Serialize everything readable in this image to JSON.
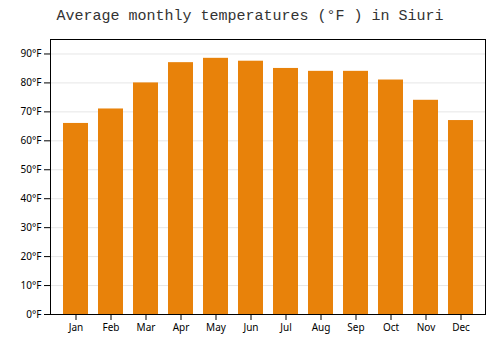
{
  "chart_data": {
    "type": "bar",
    "title": "Average monthly temperatures (°F ) in Siuri",
    "categories": [
      "Jan",
      "Feb",
      "Mar",
      "Apr",
      "May",
      "Jun",
      "Jul",
      "Aug",
      "Sep",
      "Oct",
      "Nov",
      "Dec"
    ],
    "values": [
      66,
      71,
      80,
      87,
      88.5,
      87.5,
      85,
      84,
      84,
      81,
      74,
      67
    ],
    "color": "#E8820A",
    "ylim": [
      0,
      95
    ],
    "yticks": [
      {
        "value": 0,
        "label": "0°F"
      },
      {
        "value": 10,
        "label": "10°F"
      },
      {
        "value": 20,
        "label": "20°F"
      },
      {
        "value": 30,
        "label": "30°F"
      },
      {
        "value": 40,
        "label": "40°F"
      },
      {
        "value": 50,
        "label": "50°F"
      },
      {
        "value": 60,
        "label": "60°F"
      },
      {
        "value": 70,
        "label": "70°F"
      },
      {
        "value": 80,
        "label": "80°F"
      },
      {
        "value": 90,
        "label": "90°F"
      }
    ],
    "grid": true
  }
}
